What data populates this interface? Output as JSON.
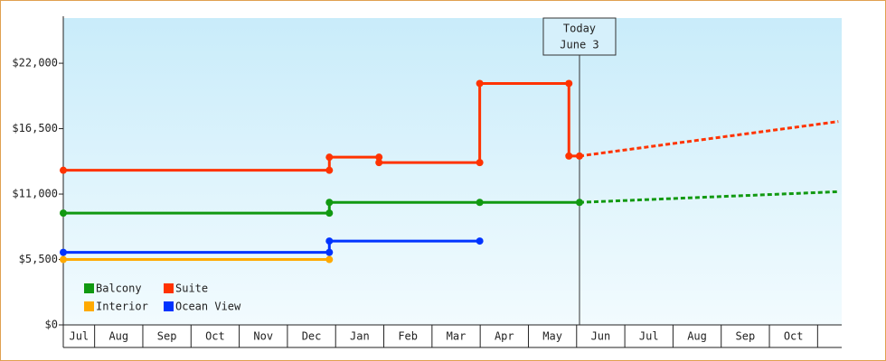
{
  "chart_data": {
    "type": "step-line",
    "categories": [
      "Jul",
      "Aug",
      "Sep",
      "Oct",
      "Nov",
      "Dec",
      "Jan",
      "Feb",
      "Mar",
      "Apr",
      "May",
      "Jun",
      "Jul",
      "Aug",
      "Sep",
      "Oct"
    ],
    "xlim": [
      0.35,
      16.5
    ],
    "ylim": [
      0,
      25800
    ],
    "yticks": [
      {
        "value": 0,
        "label": "$0"
      },
      {
        "value": 5500,
        "label": "$5,500"
      },
      {
        "value": 11000,
        "label": "$11,000"
      },
      {
        "value": 16500,
        "label": "$16,500"
      },
      {
        "value": 22000,
        "label": "$22,000"
      }
    ],
    "series": [
      {
        "name": "Balcony",
        "color": "#119911",
        "x": [
          0.35,
          5.87,
          5.87,
          8.99,
          11.06
        ],
        "values": [
          9400,
          9400,
          10300,
          10300,
          10300
        ],
        "forecast_x": [
          11.06,
          16.43
        ],
        "forecast_values": [
          10300,
          11200
        ]
      },
      {
        "name": "Suite",
        "color": "#ff3300",
        "x": [
          0.35,
          5.87,
          5.87,
          6.9,
          6.9,
          8.99,
          8.99,
          10.84,
          10.84,
          11.06
        ],
        "values": [
          13000,
          13000,
          14100,
          14100,
          13650,
          13650,
          20300,
          20300,
          14200,
          14200
        ],
        "forecast_x": [
          11.06,
          16.43
        ],
        "forecast_values": [
          14200,
          17100
        ]
      },
      {
        "name": "Interior",
        "color": "#ffaa00",
        "x": [
          0.35,
          5.87
        ],
        "values": [
          5500,
          5500
        ]
      },
      {
        "name": "Ocean View",
        "color": "#0033ff",
        "x": [
          0.35,
          5.87,
          5.87,
          8.99
        ],
        "values": [
          6100,
          6100,
          7050,
          7050
        ]
      }
    ],
    "annotations": [
      {
        "x": 11.06,
        "lines": [
          "Today",
          "June 3"
        ]
      }
    ]
  }
}
